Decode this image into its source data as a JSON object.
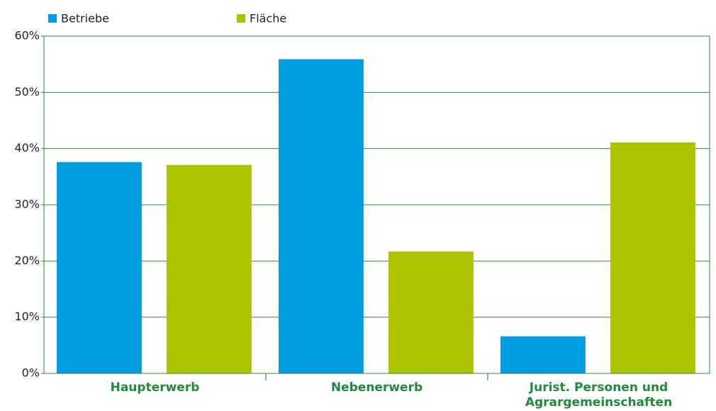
{
  "chart_data": {
    "type": "bar",
    "categories": [
      "Haupterwerb",
      "Nebenerwerb",
      "Jurist. Personen und Agrargemeinschaften"
    ],
    "series": [
      {
        "name": "Betriebe",
        "color": "#009ee0",
        "values": [
          37.6,
          55.9,
          6.6
        ]
      },
      {
        "name": "Fläche",
        "color": "#afc400",
        "values": [
          37.1,
          21.7,
          41.1
        ]
      }
    ],
    "ylim": [
      0,
      60
    ],
    "yticks": [
      {
        "value": 0,
        "label": "0%"
      },
      {
        "value": 10,
        "label": "10%"
      },
      {
        "value": 20,
        "label": "20%"
      },
      {
        "value": 30,
        "label": "30%"
      },
      {
        "value": 40,
        "label": "40%"
      },
      {
        "value": 50,
        "label": "50%"
      },
      {
        "value": 60,
        "label": "60%"
      }
    ],
    "grid": true,
    "grid_color": "#2e8b3a",
    "legend": "top-left"
  }
}
